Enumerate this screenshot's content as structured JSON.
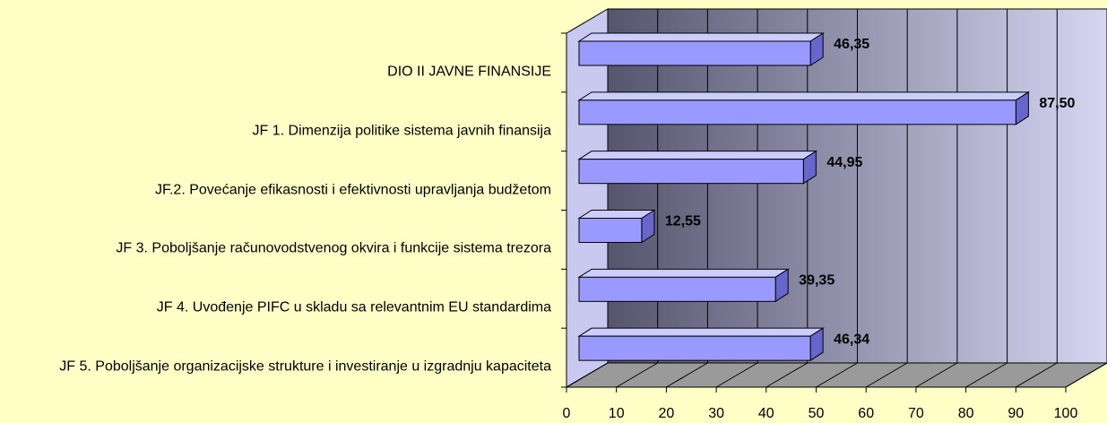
{
  "chart_data": {
    "type": "bar3d_horizontal",
    "categories": [
      "DIO II JAVNE FINANSIJE",
      "JF 1. Dimenzija politike sistema javnih finansija",
      "JF.2. Povećanje efikasnosti i efektivnosti upravljanja budžetom",
      "JF 3. Poboljšanje računovodstvenog okvira i funkcije sistema trezora",
      "JF 4. Uvođenje PIFC u skladu sa relevantnim EU standardima",
      "JF 5. Poboljšanje organizacijske strukture i investiranje u izgradnju kapaciteta"
    ],
    "values": [
      46.35,
      87.5,
      44.95,
      12.55,
      39.35,
      46.34
    ],
    "value_labels": [
      "46,35",
      "87,50",
      "44,95",
      "12,55",
      "39,35",
      "46,34"
    ],
    "color": "#9999ff",
    "xlim": [
      0,
      100
    ],
    "xticks": [
      0,
      10,
      20,
      30,
      40,
      50,
      60,
      70,
      80,
      90,
      100
    ],
    "grid": true
  }
}
